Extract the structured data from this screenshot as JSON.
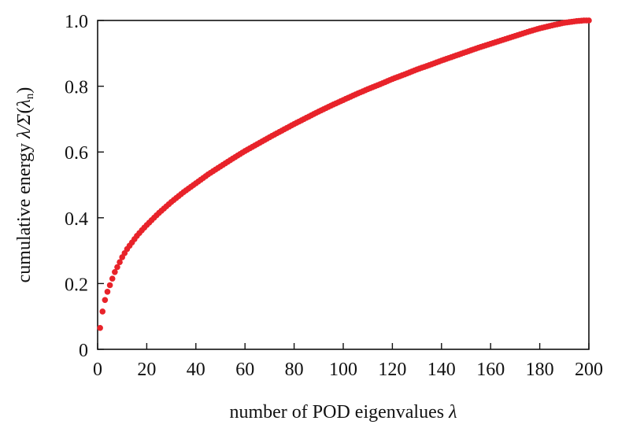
{
  "chart_data": {
    "type": "scatter",
    "title": "",
    "xlabel": {
      "prefix": "number of POD eigenvalues ",
      "symbol": "λ"
    },
    "ylabel": {
      "prefix": "cumulative energy ",
      "symbol": "λ/Σ",
      "paren_open": "(",
      "paren_symbol": "λ",
      "subscript": "n",
      "paren_close": ")"
    },
    "xlim": [
      0,
      200
    ],
    "ylim": [
      0,
      1.0
    ],
    "xticks": [
      0,
      20,
      40,
      60,
      80,
      100,
      120,
      140,
      160,
      180,
      200
    ],
    "xtick_labels": [
      "0",
      "20",
      "40",
      "60",
      "80",
      "100",
      "120",
      "140",
      "160",
      "180",
      "200"
    ],
    "yticks": [
      0,
      0.2,
      0.4,
      0.6,
      0.8,
      1.0
    ],
    "ytick_labels": [
      "0",
      "0.2",
      "0.4",
      "0.6",
      "0.8",
      "1.0"
    ],
    "grid": false,
    "legend": "none",
    "marker_color": "#e8232a",
    "series": [
      {
        "x": [
          1,
          2,
          3,
          4,
          5,
          6,
          7,
          8,
          9,
          10,
          12,
          14,
          16,
          18,
          20,
          25,
          30,
          35,
          40,
          45,
          50,
          55,
          60,
          65,
          70,
          75,
          80,
          85,
          90,
          95,
          100,
          105,
          110,
          115,
          120,
          125,
          130,
          135,
          140,
          145,
          150,
          155,
          160,
          165,
          170,
          175,
          180,
          185,
          190,
          195,
          198,
          200
        ],
        "y": [
          0.065,
          0.115,
          0.15,
          0.175,
          0.195,
          0.215,
          0.235,
          0.25,
          0.265,
          0.28,
          0.305,
          0.325,
          0.345,
          0.362,
          0.378,
          0.415,
          0.448,
          0.478,
          0.505,
          0.532,
          0.556,
          0.58,
          0.603,
          0.624,
          0.645,
          0.665,
          0.685,
          0.704,
          0.723,
          0.741,
          0.758,
          0.775,
          0.791,
          0.806,
          0.822,
          0.836,
          0.851,
          0.864,
          0.878,
          0.891,
          0.904,
          0.917,
          0.929,
          0.941,
          0.953,
          0.965,
          0.976,
          0.985,
          0.993,
          0.998,
          1.0,
          1.0
        ]
      }
    ]
  }
}
